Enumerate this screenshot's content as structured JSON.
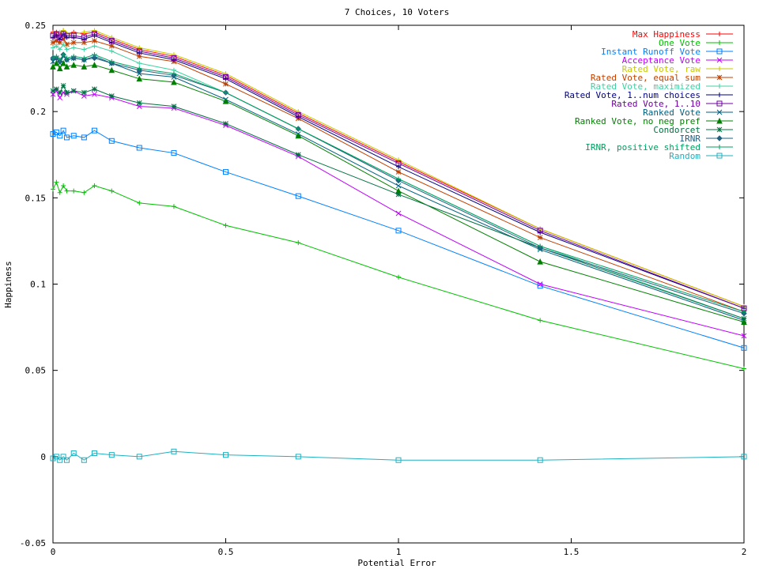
{
  "chart_data": {
    "type": "line",
    "title": "7 Choices, 10 Voters",
    "xlabel": "Potential Error",
    "ylabel": "Happiness",
    "xlim": [
      0,
      2
    ],
    "ylim": [
      -0.05,
      0.25
    ],
    "xticks": [
      {
        "value": 0,
        "label": "0"
      },
      {
        "value": 0.5,
        "label": "0.5"
      },
      {
        "value": 1,
        "label": "1"
      },
      {
        "value": 1.5,
        "label": "1.5"
      },
      {
        "value": 2,
        "label": "2"
      }
    ],
    "yticks": [
      {
        "value": -0.05,
        "label": "-0.05"
      },
      {
        "value": 0,
        "label": "0"
      },
      {
        "value": 0.05,
        "label": "0.05"
      },
      {
        "value": 0.1,
        "label": "0.1"
      },
      {
        "value": 0.15,
        "label": "0.15"
      },
      {
        "value": 0.2,
        "label": "0.2"
      },
      {
        "value": 0.25,
        "label": "0.25"
      }
    ],
    "legend_position": "top-right",
    "grid": false,
    "x": [
      0,
      0.01,
      0.02,
      0.03,
      0.04,
      0.06,
      0.09,
      0.12,
      0.17,
      0.25,
      0.35,
      0.5,
      0.71,
      1,
      1.41,
      2
    ],
    "series": [
      {
        "name": "Max Happiness",
        "color": "#ff0000",
        "marker": "plus",
        "values": [
          0.246,
          0.246,
          0.245,
          0.247,
          0.245,
          0.246,
          0.245,
          0.246,
          0.242,
          0.236,
          0.232,
          0.221,
          0.199,
          0.171,
          0.132,
          0.087
        ]
      },
      {
        "name": "One Vote",
        "color": "#00c000",
        "marker": "plus",
        "values": [
          0.155,
          0.159,
          0.153,
          0.157,
          0.154,
          0.154,
          0.153,
          0.157,
          0.154,
          0.147,
          0.145,
          0.134,
          0.124,
          0.104,
          0.079,
          0.051
        ]
      },
      {
        "name": "Instant Runoff Vote",
        "color": "#0080ff",
        "marker": "square",
        "values": [
          0.187,
          0.188,
          0.186,
          0.189,
          0.185,
          0.186,
          0.185,
          0.189,
          0.183,
          0.179,
          0.176,
          0.165,
          0.151,
          0.131,
          0.099,
          0.063
        ]
      },
      {
        "name": "Acceptance Vote",
        "color": "#c000ff",
        "marker": "x",
        "values": [
          0.21,
          0.212,
          0.208,
          0.211,
          0.21,
          0.212,
          0.209,
          0.21,
          0.208,
          0.203,
          0.202,
          0.192,
          0.174,
          0.141,
          0.1,
          0.07
        ]
      },
      {
        "name": "Rated Vote, raw",
        "color": "#c8c800",
        "marker": "plus",
        "values": [
          0.245,
          0.244,
          0.246,
          0.247,
          0.245,
          0.245,
          0.246,
          0.247,
          0.243,
          0.237,
          0.233,
          0.222,
          0.2,
          0.172,
          0.132,
          0.087
        ]
      },
      {
        "name": "Rated Vote, equal sum",
        "color": "#c04000",
        "marker": "star",
        "values": [
          0.24,
          0.241,
          0.24,
          0.242,
          0.239,
          0.24,
          0.24,
          0.241,
          0.238,
          0.232,
          0.229,
          0.216,
          0.196,
          0.165,
          0.127,
          0.084
        ]
      },
      {
        "name": "Rated Vote, maximized",
        "color": "#40d0a0",
        "marker": "plus",
        "values": [
          0.237,
          0.238,
          0.236,
          0.239,
          0.236,
          0.237,
          0.236,
          0.238,
          0.235,
          0.228,
          0.224,
          0.211,
          0.19,
          0.161,
          0.122,
          0.08
        ]
      },
      {
        "name": "Rated Vote, 1..num choices",
        "color": "#000080",
        "marker": "plus",
        "values": [
          0.243,
          0.244,
          0.242,
          0.245,
          0.243,
          0.243,
          0.242,
          0.244,
          0.24,
          0.234,
          0.23,
          0.219,
          0.197,
          0.168,
          0.13,
          0.086
        ]
      },
      {
        "name": "Rated Vote, 1..10",
        "color": "#7000a0",
        "marker": "square",
        "values": [
          0.244,
          0.245,
          0.243,
          0.245,
          0.244,
          0.244,
          0.243,
          0.245,
          0.241,
          0.235,
          0.231,
          0.22,
          0.198,
          0.17,
          0.131,
          0.086
        ]
      },
      {
        "name": "Ranked Vote",
        "color": "#006080",
        "marker": "x",
        "values": [
          0.229,
          0.231,
          0.228,
          0.232,
          0.23,
          0.231,
          0.23,
          0.232,
          0.228,
          0.222,
          0.22,
          0.207,
          0.187,
          0.157,
          0.12,
          0.079
        ]
      },
      {
        "name": "Ranked Vote, no neg pref",
        "color": "#008000",
        "marker": "triangle",
        "values": [
          0.226,
          0.228,
          0.225,
          0.228,
          0.226,
          0.227,
          0.226,
          0.227,
          0.224,
          0.219,
          0.217,
          0.206,
          0.186,
          0.154,
          0.113,
          0.078
        ]
      },
      {
        "name": "Condorcet",
        "color": "#007040",
        "marker": "star",
        "values": [
          0.212,
          0.213,
          0.211,
          0.215,
          0.211,
          0.212,
          0.211,
          0.213,
          0.209,
          0.205,
          0.203,
          0.193,
          0.175,
          0.152,
          0.121,
          0.08
        ]
      },
      {
        "name": "IRNR",
        "color": "#206080",
        "marker": "diamond",
        "values": [
          0.231,
          0.231,
          0.229,
          0.233,
          0.23,
          0.231,
          0.23,
          0.231,
          0.228,
          0.224,
          0.221,
          0.211,
          0.19,
          0.16,
          0.121,
          0.083
        ]
      },
      {
        "name": "IRNR, positive shifted",
        "color": "#00a060",
        "marker": "plus",
        "values": [
          0.231,
          0.232,
          0.23,
          0.233,
          0.231,
          0.232,
          0.231,
          0.233,
          0.229,
          0.225,
          0.222,
          0.211,
          0.19,
          0.161,
          0.122,
          0.084
        ]
      },
      {
        "name": "Random",
        "color": "#20b0c0",
        "marker": "square",
        "values": [
          -0.001,
          0.0,
          -0.002,
          0.0,
          -0.002,
          0.002,
          -0.002,
          0.002,
          0.001,
          0.0,
          0.003,
          0.001,
          0.0,
          -0.002,
          -0.002,
          0.0
        ]
      }
    ]
  }
}
